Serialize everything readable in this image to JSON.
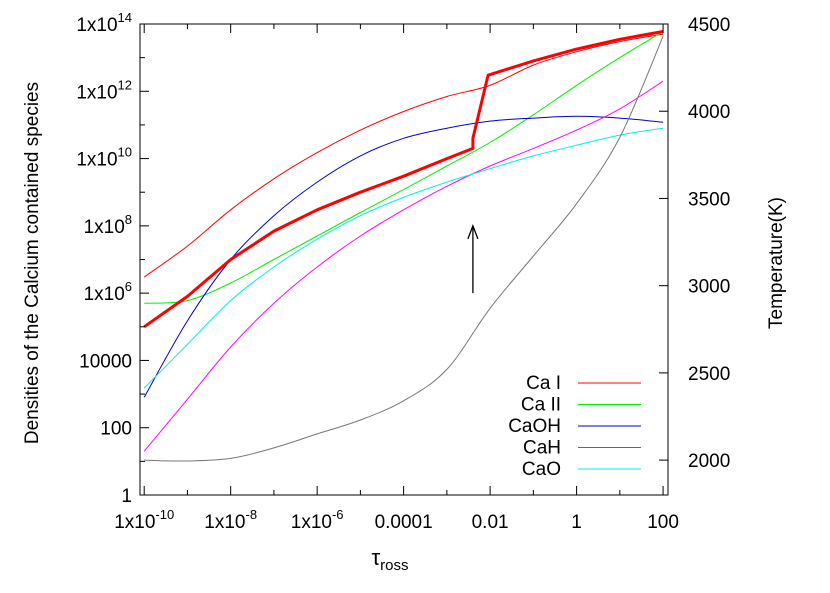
{
  "chart_data": {
    "type": "line",
    "xscale": "log",
    "yscale": "log",
    "xlim": [
      8e-11,
      130
    ],
    "ylim": [
      1,
      100000000000000.0
    ],
    "y2lim": [
      1800,
      4500
    ],
    "xlabel": "τ",
    "xlabel_sub": "ross",
    "ylabel": "Densities of the Calcium contained species",
    "y2label": "Temperature(K)",
    "x_ticks": [
      {
        "value": 1e-10,
        "base": "1x10",
        "exp": "-10"
      },
      {
        "value": 1e-08,
        "base": "1x10",
        "exp": "-8"
      },
      {
        "value": 1e-06,
        "base": "1x10",
        "exp": "-6"
      },
      {
        "value": 0.0001,
        "base": "0.0001",
        "exp": ""
      },
      {
        "value": 0.01,
        "base": "0.01",
        "exp": ""
      },
      {
        "value": 1,
        "base": "1",
        "exp": ""
      },
      {
        "value": 100,
        "base": "100",
        "exp": ""
      }
    ],
    "y_ticks": [
      {
        "value": 100000000000000.0,
        "base": "1x10",
        "exp": "14"
      },
      {
        "value": 1000000000000.0,
        "base": "1x10",
        "exp": "12"
      },
      {
        "value": 10000000000.0,
        "base": "1x10",
        "exp": "10"
      },
      {
        "value": 100000000.0,
        "base": "1x10",
        "exp": "8"
      },
      {
        "value": 1000000.0,
        "base": "1x10",
        "exp": "6"
      },
      {
        "value": 10000,
        "base": "10000",
        "exp": ""
      },
      {
        "value": 100,
        "base": "100",
        "exp": ""
      },
      {
        "value": 1,
        "base": "1",
        "exp": ""
      }
    ],
    "y2_ticks": [
      2000,
      2500,
      3000,
      3500,
      4000,
      4500
    ],
    "legend_position": "bottom-right",
    "series": [
      {
        "name": "Ca I",
        "color": "#ff0000",
        "x": [
          1e-10,
          1e-09,
          1e-08,
          1e-07,
          1e-06,
          1e-05,
          0.0001,
          0.001,
          0.01,
          0.1,
          1,
          10,
          100
        ],
        "y": [
          3000000.0,
          25000000.0,
          300000000.0,
          2500000000.0,
          15000000000.0,
          70000000000.0,
          250000000000.0,
          700000000000.0,
          1500000000000.0,
          6000000000000.0,
          15000000000000.0,
          30000000000000.0,
          50000000000000.0
        ]
      },
      {
        "name": "Ca II",
        "color": "#00ee00",
        "x": [
          1e-10,
          1e-09,
          1e-08,
          1e-07,
          1e-06,
          1e-05,
          0.0001,
          0.001,
          0.01,
          0.1,
          1,
          10,
          100
        ],
        "y": [
          500000.0,
          600000.0,
          2000000.0,
          10000000.0,
          50000000.0,
          250000000.0,
          1200000000.0,
          6000000000.0,
          30000000000.0,
          200000000000.0,
          1500000000000.0,
          10000000000000.0,
          60000000000000.0
        ]
      },
      {
        "name": "CaOH",
        "color": "#0000cc",
        "x": [
          1e-10,
          1e-09,
          1e-08,
          1e-07,
          1e-06,
          1e-05,
          0.0001,
          0.001,
          0.01,
          0.1,
          1,
          10,
          100
        ],
        "y": [
          800,
          150000.0,
          10000000.0,
          200000000.0,
          2000000000.0,
          12000000000.0,
          40000000000.0,
          80000000000.0,
          130000000000.0,
          160000000000.0,
          180000000000.0,
          160000000000.0,
          120000000000.0
        ]
      },
      {
        "name": "CaH",
        "color": "#ff00ff",
        "x": [
          1e-10,
          1e-09,
          1e-08,
          1e-07,
          1e-06,
          1e-05,
          0.0001,
          0.001,
          0.01,
          0.1,
          1,
          10,
          100
        ],
        "y": [
          20,
          700,
          25000.0,
          500000.0,
          6000000.0,
          50000000.0,
          300000000.0,
          1500000000.0,
          6000000000.0,
          20000000000.0,
          70000000000.0,
          300000000000.0,
          2000000000000.0
        ]
      },
      {
        "name": "CaO",
        "color": "#00eeee",
        "x": [
          1e-10,
          1e-09,
          1e-08,
          1e-07,
          1e-06,
          1e-05,
          0.0001,
          0.001,
          0.01,
          0.1,
          1,
          10,
          100
        ],
        "y": [
          1500,
          30000.0,
          600000.0,
          6000000.0,
          40000000.0,
          200000000.0,
          700000000.0,
          2000000000.0,
          5000000000.0,
          12000000000.0,
          25000000000.0,
          50000000000.0,
          80000000000.0
        ]
      },
      {
        "name": "",
        "color": "#ff0000",
        "width": 3,
        "x": [
          1e-10,
          1e-09,
          1e-08,
          1e-07,
          1e-06,
          1e-05,
          0.0001,
          0.001,
          0.004,
          0.004,
          0.009,
          0.1,
          1,
          10,
          100
        ],
        "y": [
          100000.0,
          800000.0,
          10000000.0,
          70000000.0,
          300000000.0,
          1000000000.0,
          3000000000.0,
          10000000000.0,
          20000000000.0,
          40000000000.0,
          3000000000000.0,
          8000000000000.0,
          18000000000000.0,
          35000000000000.0,
          60000000000000.0
        ]
      },
      {
        "name": "",
        "color": "#777777",
        "axis": "y2",
        "x": [
          1e-10,
          1e-09,
          1e-08,
          1e-07,
          1e-06,
          1e-05,
          0.0001,
          0.001,
          0.01,
          0.1,
          1,
          10,
          100
        ],
        "y": [
          2000,
          1995,
          2010,
          2070,
          2150,
          2230,
          2340,
          2520,
          2870,
          3170,
          3470,
          3850,
          4430
        ]
      }
    ],
    "annotations": [
      {
        "type": "arrow",
        "direction": "up",
        "x": 0.004,
        "y_from": 1000000.0,
        "y_to": 100000000.0
      }
    ]
  }
}
